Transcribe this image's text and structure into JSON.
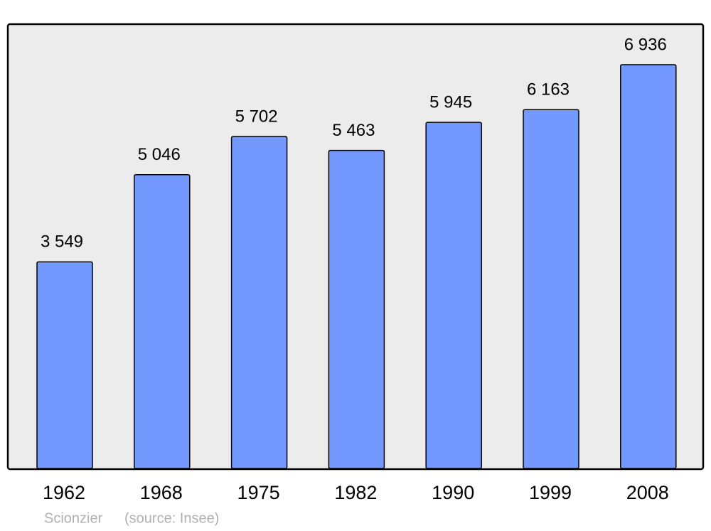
{
  "chart_data": {
    "type": "bar",
    "categories": [
      "1962",
      "1968",
      "1975",
      "1982",
      "1990",
      "1999",
      "2008"
    ],
    "values": [
      3549,
      5046,
      5702,
      5463,
      5945,
      6163,
      6936
    ],
    "value_labels": [
      "3 549",
      "5 046",
      "5 702",
      "5 463",
      "5 945",
      "6 163",
      "6 936"
    ],
    "color": "#7399ff",
    "author": "Scionzier",
    "source": "(source: Insee)"
  }
}
